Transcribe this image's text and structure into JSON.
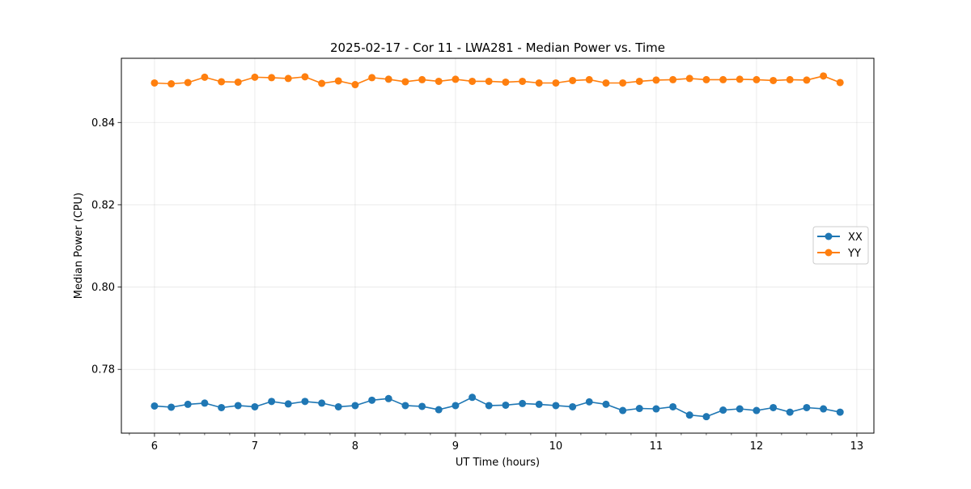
{
  "chart_data": {
    "type": "line",
    "title": "2025-02-17 - Cor 11 - LWA281 - Median Power vs. Time",
    "xlabel": "UT Time (hours)",
    "ylabel": "Median Power (CPU)",
    "xlim": [
      5.67,
      13.17
    ],
    "ylim": [
      0.7645,
      0.8556
    ],
    "xticks": [
      6,
      7,
      8,
      9,
      10,
      11,
      12,
      13
    ],
    "xtick_labels": [
      "6",
      "7",
      "8",
      "9",
      "10",
      "11",
      "12",
      "13"
    ],
    "xminor_step": 0.25,
    "yticks": [
      0.78,
      0.8,
      0.82,
      0.84
    ],
    "ytick_labels": [
      "0.78",
      "0.80",
      "0.82",
      "0.84"
    ],
    "grid": true,
    "legend_position": "center-right",
    "x": [
      6.0,
      6.167,
      6.333,
      6.5,
      6.667,
      6.833,
      7.0,
      7.167,
      7.333,
      7.5,
      7.667,
      7.833,
      8.0,
      8.167,
      8.333,
      8.5,
      8.667,
      8.833,
      9.0,
      9.167,
      9.333,
      9.5,
      9.667,
      9.833,
      10.0,
      10.167,
      10.333,
      10.5,
      10.667,
      10.833,
      11.0,
      11.167,
      11.333,
      11.5,
      11.667,
      11.833,
      12.0,
      12.167,
      12.333,
      12.5,
      12.667,
      12.833
    ],
    "series": [
      {
        "name": "XX",
        "color": "#1f77b4",
        "values": [
          0.7711,
          0.7708,
          0.7715,
          0.7718,
          0.7707,
          0.7712,
          0.7709,
          0.7722,
          0.7716,
          0.7722,
          0.7718,
          0.7709,
          0.7712,
          0.7725,
          0.7729,
          0.7712,
          0.771,
          0.7702,
          0.7712,
          0.7732,
          0.7712,
          0.7713,
          0.7717,
          0.7715,
          0.7712,
          0.7709,
          0.7721,
          0.7715,
          0.77,
          0.7705,
          0.7704,
          0.7709,
          0.7689,
          0.7685,
          0.7701,
          0.7704,
          0.77,
          0.7707,
          0.7696,
          0.7707,
          0.7704,
          0.7696
        ]
      },
      {
        "name": "YY",
        "color": "#ff7f0e",
        "values": [
          0.8496,
          0.8494,
          0.8497,
          0.851,
          0.8499,
          0.8498,
          0.851,
          0.8509,
          0.8507,
          0.8511,
          0.8495,
          0.8501,
          0.8492,
          0.8509,
          0.8505,
          0.8499,
          0.8504,
          0.85,
          0.8505,
          0.85,
          0.85,
          0.8498,
          0.85,
          0.8496,
          0.8496,
          0.8502,
          0.8504,
          0.8496,
          0.8496,
          0.85,
          0.8503,
          0.8504,
          0.8507,
          0.8504,
          0.8504,
          0.8505,
          0.8504,
          0.8502,
          0.8504,
          0.8503,
          0.8513,
          0.8497
        ]
      }
    ]
  }
}
